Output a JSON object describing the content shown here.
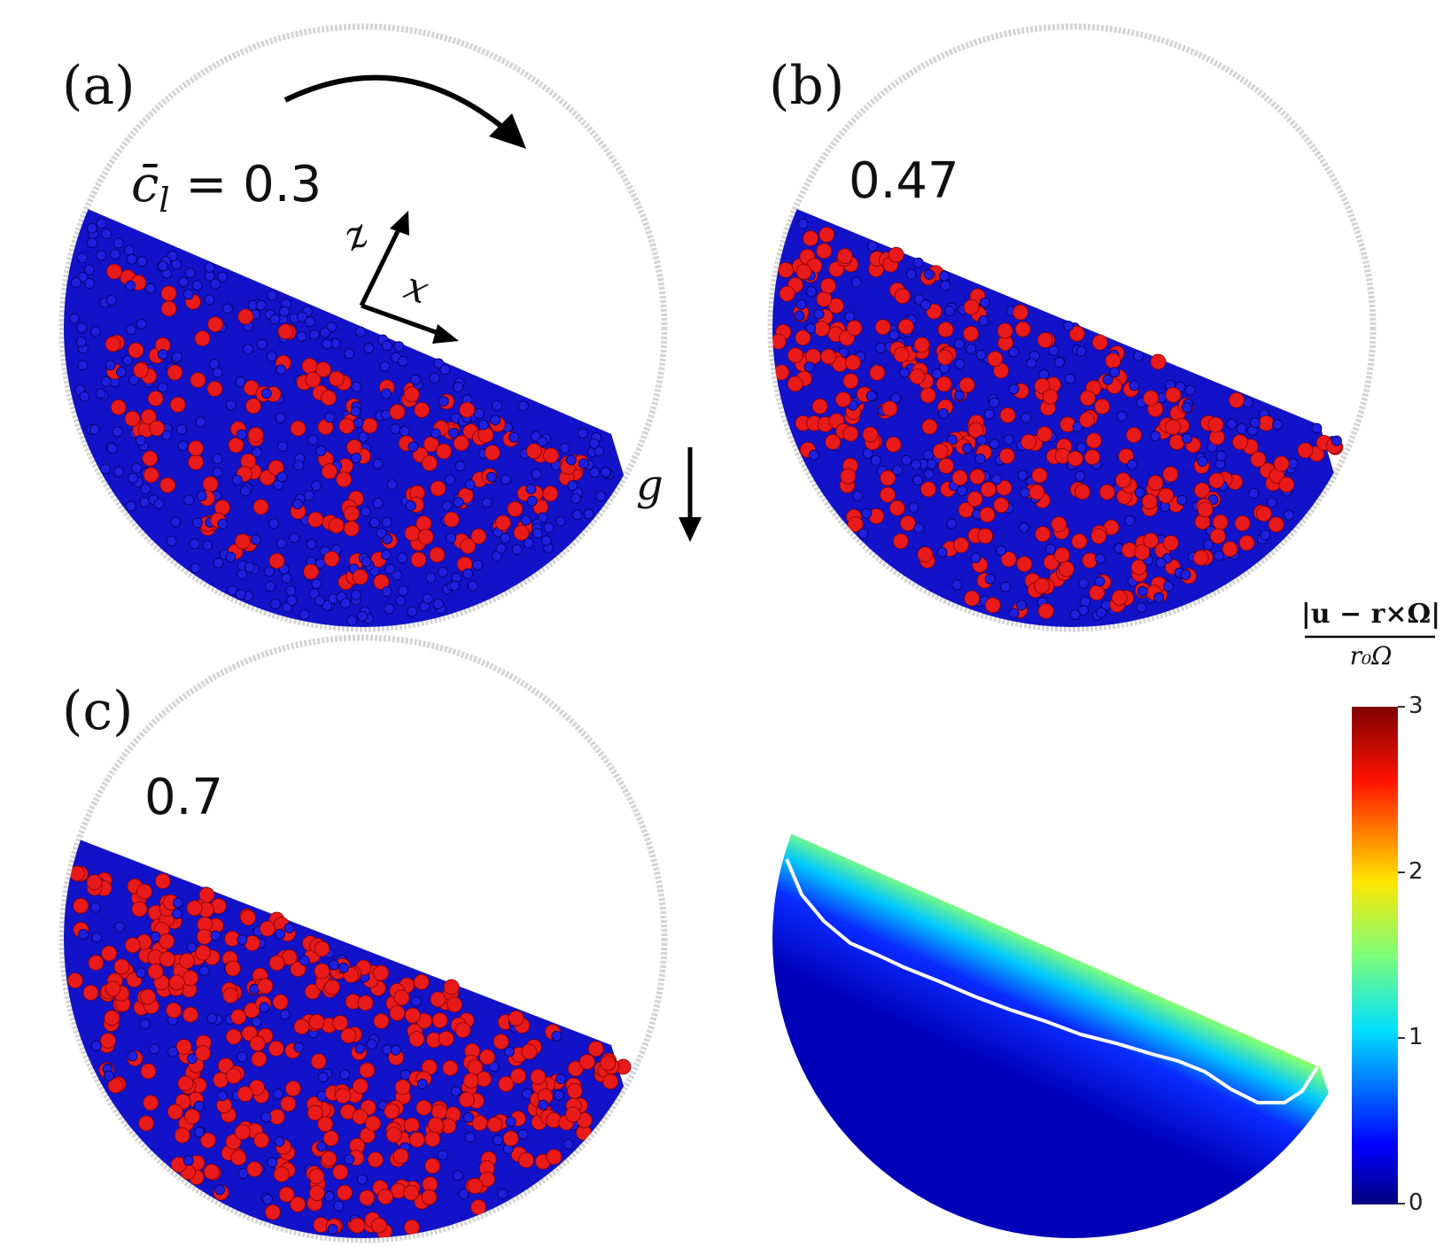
{
  "panels": [
    {
      "label": "(a)",
      "concentration_prefix": "c̄",
      "concentration_sub": "l",
      "concentration_value": "= 0.3"
    },
    {
      "label": "(b)",
      "concentration_value": "0.47"
    },
    {
      "label": "(c)",
      "concentration_value": "0.7"
    }
  ],
  "axes": {
    "z": "z",
    "x": "x",
    "gravity": "g"
  },
  "colors": {
    "small_particles": "#1f1fe0",
    "large_particles": "#e81a1a",
    "drum_wall": "#d0d0d0"
  },
  "colorbar": {
    "title_numerator": "|u − r×Ω|",
    "title_denominator": "r₀Ω",
    "ticks": [
      "0",
      "1",
      "2",
      "3"
    ],
    "range": [
      0,
      3
    ],
    "colormap": "jet"
  }
}
